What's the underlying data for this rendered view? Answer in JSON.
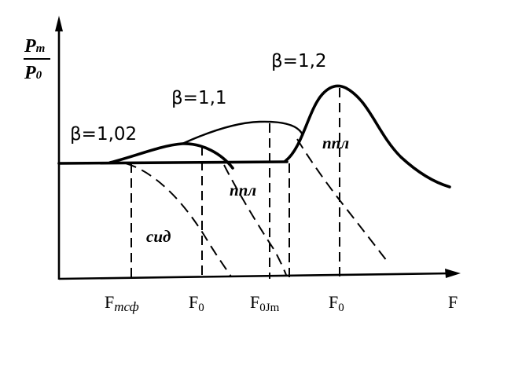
{
  "y_axis": {
    "numerator": "P",
    "numerator_sub": "m",
    "denominator": "P",
    "denominator_sub": "0"
  },
  "x_axis": {
    "label": "F"
  },
  "curve_labels": {
    "beta1": "β=1,02",
    "beta2": "β=1,1",
    "beta3": "β=1,2",
    "sid": "сид",
    "ppl_mid": "ппл",
    "ppl_right": "ппл"
  },
  "ticks": {
    "f_tsf_main": "F",
    "f_tsf_sub": "тсф",
    "f0_a_main": "F",
    "f0_a_sub": "0",
    "f0jm_main": "F",
    "f0jm_sub": "0Jm",
    "f0_b_main": "F",
    "f0_b_sub": "0"
  },
  "colors": {
    "ink": "#000000",
    "background": "#ffffff"
  }
}
